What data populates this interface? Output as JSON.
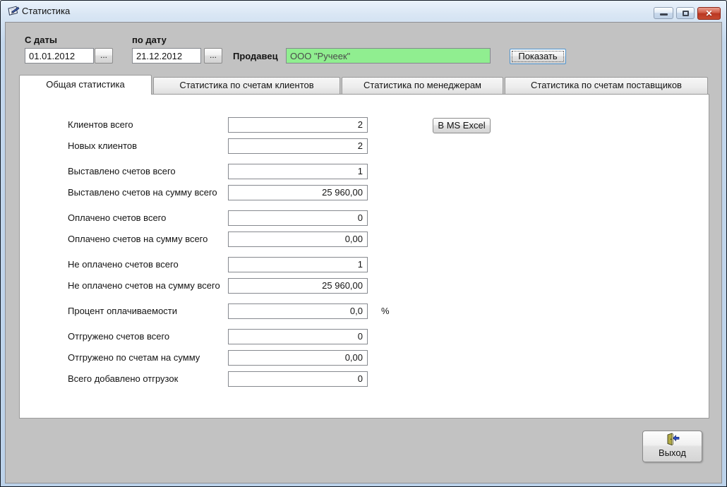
{
  "window": {
    "title": "Статистика",
    "close_glyph": "✕"
  },
  "toolbar": {
    "from": {
      "label": "С даты",
      "value": "01.01.2012",
      "browse": "..."
    },
    "to": {
      "label": "по дату",
      "value": "21.12.2012",
      "browse": "..."
    },
    "seller": {
      "label": "Продавец",
      "value": "ООО \"Ручеек\""
    },
    "show_button": "Показать"
  },
  "tabs": [
    {
      "label": "Общая статистика",
      "active": true
    },
    {
      "label": "Статистика по счетам клиентов",
      "active": false
    },
    {
      "label": "Статистика по менеджерам",
      "active": false
    },
    {
      "label": "Статистика по счетам поставщиков",
      "active": false
    }
  ],
  "panel": {
    "excel_button": "В MS Excel",
    "rows": [
      {
        "label": "Клиентов всего",
        "value": "2"
      },
      {
        "label": "Новых клиентов",
        "value": "2"
      },
      {
        "label": "Выставлено счетов всего",
        "value": "1",
        "gap": true
      },
      {
        "label": "Выставлено счетов на сумму всего",
        "value": "25 960,00"
      },
      {
        "label": "Оплачено счетов всего",
        "value": "0",
        "gap": true
      },
      {
        "label": "Оплачено счетов на сумму всего",
        "value": "0,00"
      },
      {
        "label": "Не оплачено счетов всего",
        "value": "1",
        "gap": true
      },
      {
        "label": "Не оплачено счетов на сумму всего",
        "value": "25 960,00"
      },
      {
        "label": "Процент оплачиваемости",
        "value": "0,0",
        "suffix": "%",
        "gap": true
      },
      {
        "label": "Отгружено счетов всего",
        "value": "0",
        "gap": true
      },
      {
        "label": "Отгружено по счетам на сумму",
        "value": "0,00"
      },
      {
        "label": "Всего добавлено отгрузок",
        "value": "0"
      }
    ]
  },
  "footer": {
    "exit_button": "Выход"
  },
  "colors": {
    "seller_bg": "#90ee90",
    "close_red": "#c0392b",
    "frame_blue": "#bcd2ea",
    "client_gray": "#c2c2c2"
  }
}
